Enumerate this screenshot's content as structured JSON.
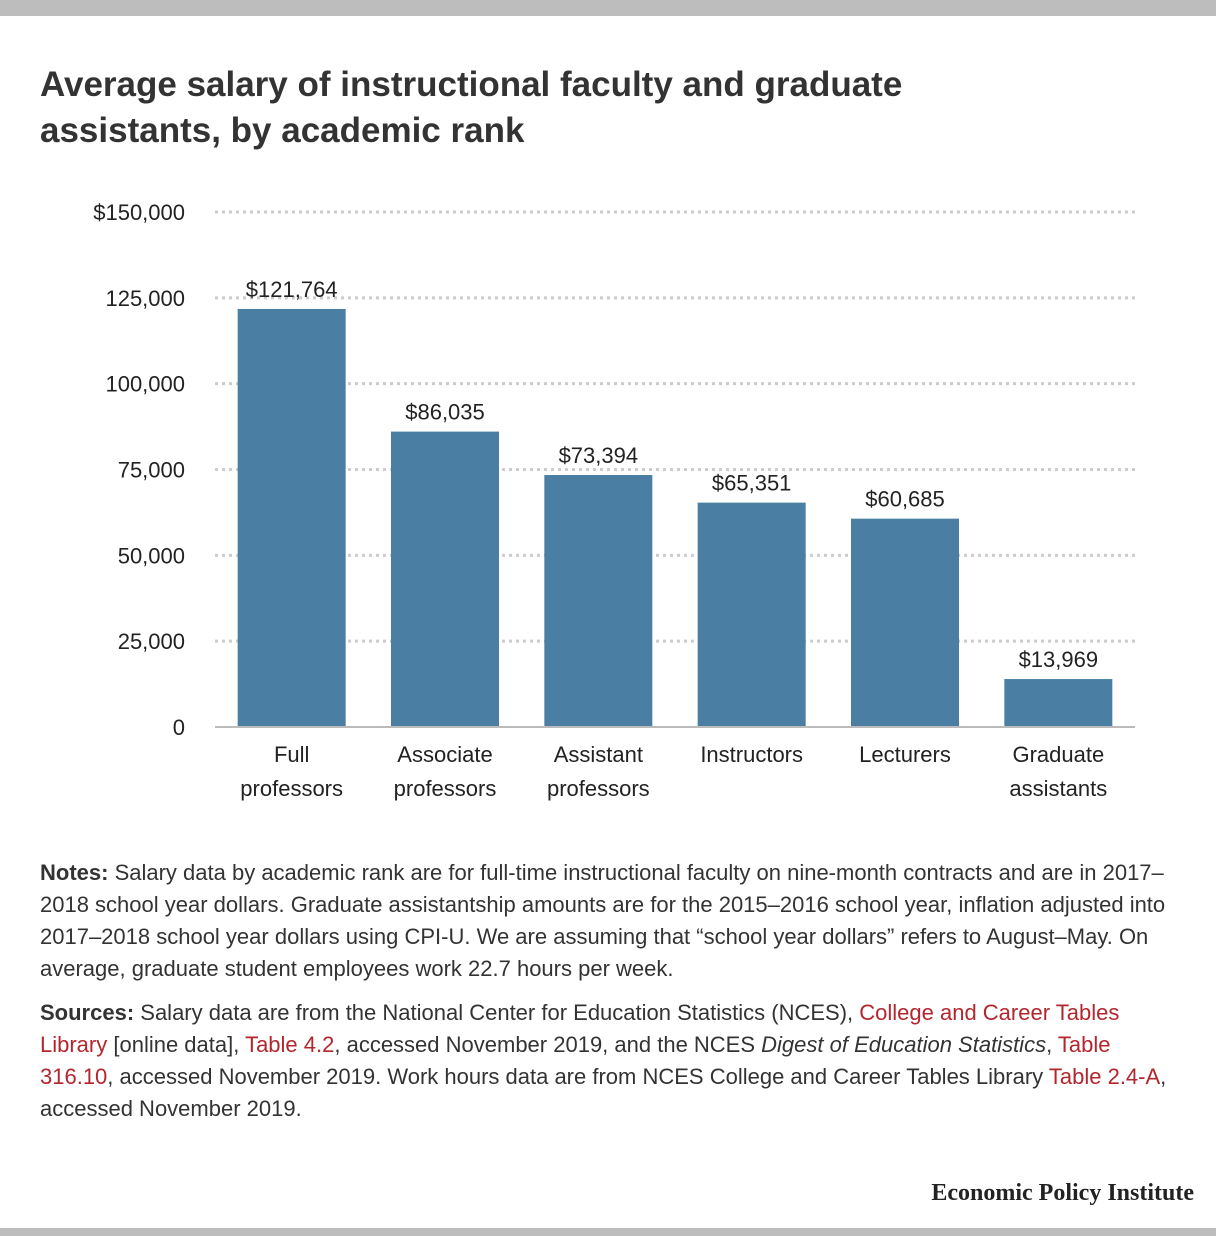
{
  "title": "Average salary of instructional faculty and graduate assistants, by academic rank",
  "chart_data": {
    "type": "bar",
    "title": "Average salary of instructional faculty and graduate assistants, by academic rank",
    "categories": [
      [
        "Full",
        "professors"
      ],
      [
        "Associate",
        "professors"
      ],
      [
        "Assistant",
        "professors"
      ],
      [
        "Instructors"
      ],
      [
        "Lecturers"
      ],
      [
        "Graduate",
        "assistants"
      ]
    ],
    "values": [
      121764,
      86035,
      73394,
      65351,
      60685,
      13969
    ],
    "value_labels": [
      "$121,764",
      "$86,035",
      "$73,394",
      "$65,351",
      "$60,685",
      "$13,969"
    ],
    "y_ticks": [
      0,
      25000,
      50000,
      75000,
      100000,
      125000,
      150000
    ],
    "y_tick_labels": [
      "0",
      "25,000",
      "50,000",
      "75,000",
      "100,000",
      "125,000",
      "$150,000"
    ],
    "ylim": [
      0,
      150000
    ],
    "xlabel": "",
    "ylabel": "",
    "grid": true,
    "bar_color": "#4a7fa3"
  },
  "notes": {
    "label": "Notes:",
    "text": " Salary data by academic rank are for full-time instructional faculty on nine-month contracts and are in 2017–2018 school year dollars. Graduate assistantship amounts are for the 2015–2016 school year, inflation adjusted into 2017–2018 school year dollars using CPI-U. We are assuming that “school year dollars” refers to August–May. On average, graduate student employees work 22.7 hours per week."
  },
  "sources": {
    "label": "Sources:",
    "t1": " Salary data are from the National Center for Education Statistics (NCES), ",
    "link1": "College and Career Tables Library",
    "t2": " [online data], ",
    "link2": "Table 4.2",
    "t3": ", accessed November 2019, and the NCES ",
    "italic1": "Digest of Education Statistics",
    "t4": ", ",
    "link3": "Table 316.10",
    "t5": ", accessed November 2019. Work hours data are from NCES College and Career Tables Library ",
    "link4": "Table 2.4-A",
    "t6": ", accessed November 2019."
  },
  "brand": "Economic Policy Institute",
  "colors": {
    "bar": "#4a7fa3",
    "link": "#b3262e",
    "grid": "#cccccc"
  }
}
